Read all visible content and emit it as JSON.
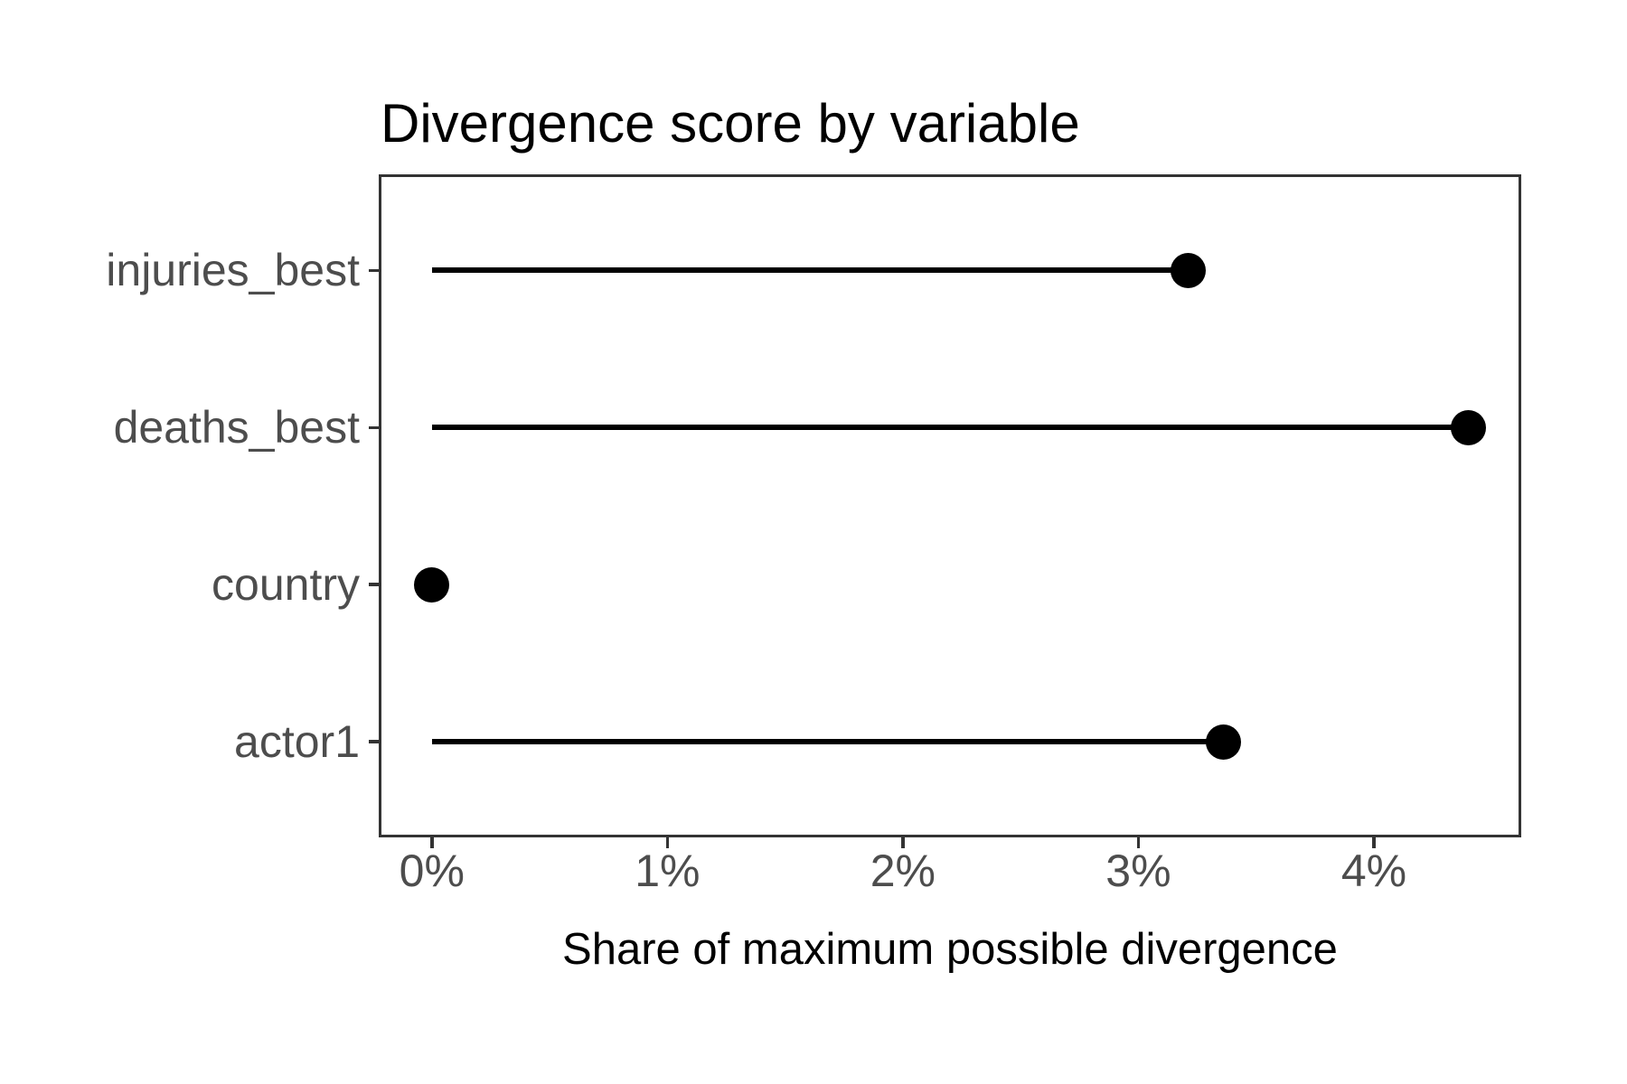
{
  "chart_data": {
    "type": "lollipop",
    "orientation": "horizontal",
    "title": "Divergence score by variable",
    "xlabel": "Share of maximum possible divergence",
    "ylabel": "",
    "categories": [
      "injuries_best",
      "deaths_best",
      "country",
      "actor1"
    ],
    "values_percent": [
      3.21,
      4.4,
      0,
      3.36
    ],
    "x_ticks": [
      {
        "value": 0,
        "label": "0%"
      },
      {
        "value": 1,
        "label": "1%"
      },
      {
        "value": 2,
        "label": "2%"
      },
      {
        "value": 3,
        "label": "3%"
      },
      {
        "value": 4,
        "label": "4%"
      }
    ],
    "xlim": [
      -0.22,
      4.62
    ],
    "grid": false,
    "legend": "none",
    "colors": {
      "point": "#000000",
      "stem": "#000000",
      "panel_border": "#333333",
      "tick": "#333333",
      "tick_label": "#4d4d4d",
      "title": "#000000",
      "axis_title": "#000000",
      "background": "#ffffff"
    }
  }
}
